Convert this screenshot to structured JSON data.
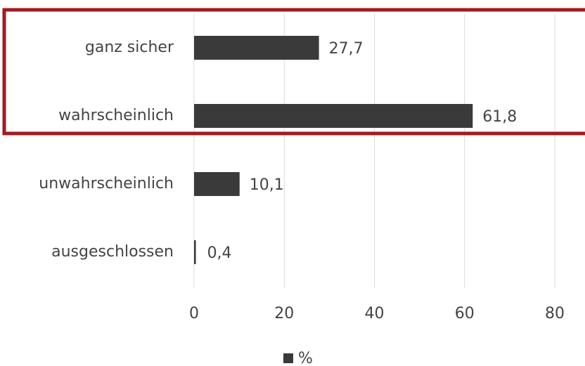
{
  "chart_data": {
    "type": "bar",
    "orientation": "horizontal",
    "categories": [
      "ganz sicher",
      "wahrscheinlich",
      "unwahrscheinlich",
      "ausgeschlossen"
    ],
    "series": [
      {
        "name": "%",
        "color": "#3a3a3a",
        "values": [
          27.7,
          61.8,
          10.1,
          0.4
        ],
        "value_labels": [
          "27,7",
          "61,8",
          "10,1",
          "0,4"
        ]
      }
    ],
    "xlim": [
      0,
      80
    ],
    "xticks": [
      0,
      20,
      40,
      60,
      80
    ],
    "grid": true,
    "legend": "bottom"
  }
}
